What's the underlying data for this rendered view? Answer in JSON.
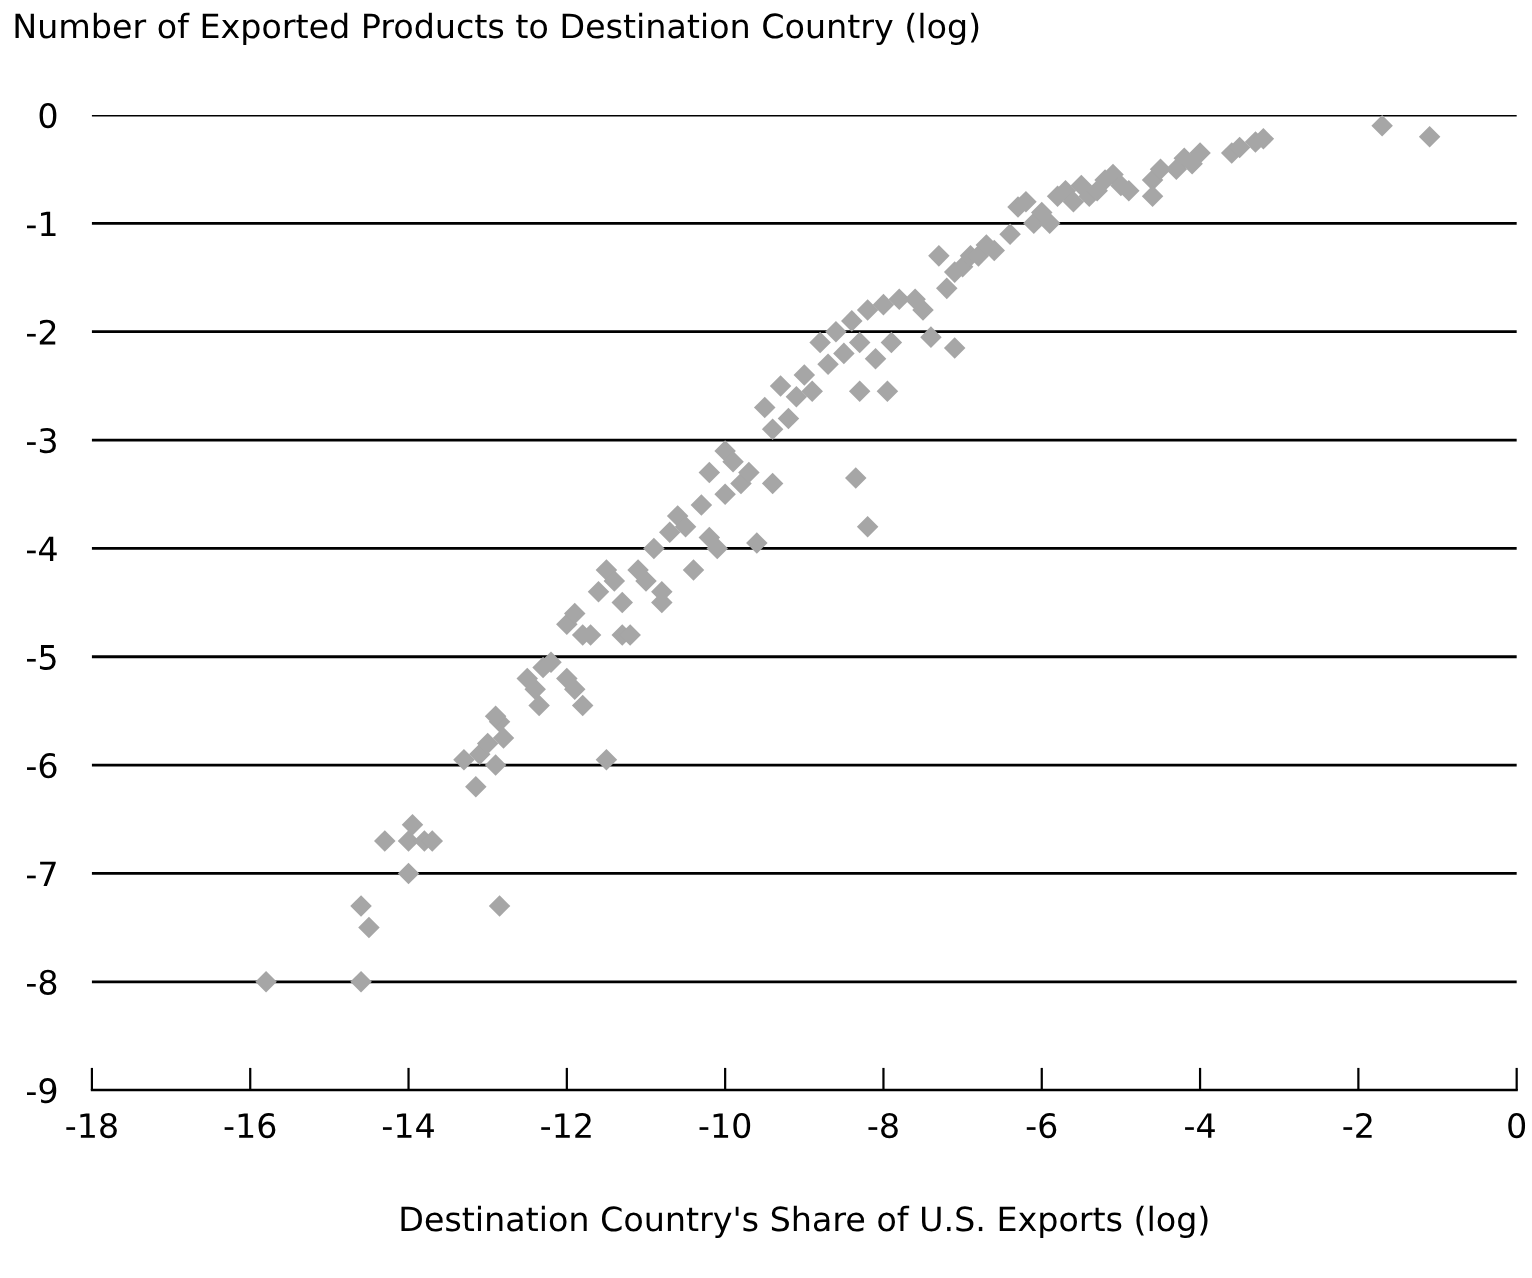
{
  "chart_data": {
    "type": "scatter",
    "ylabel": "Number of Exported Products to Destination Country (log)",
    "xlabel": "Destination Country's Share of U.S. Exports (log)",
    "marker": "diamond",
    "grid": "y",
    "xlim": [
      -18,
      0
    ],
    "xticks": [
      -18,
      -16,
      -14,
      -12,
      -10,
      -8,
      -6,
      -4,
      -2,
      0
    ],
    "ylim": [
      -9,
      0
    ],
    "yticks": [
      -9,
      -8,
      -7,
      -6,
      -5,
      -4,
      -3,
      -2,
      -1,
      0
    ],
    "series": [
      {
        "color": "#a6a6a6",
        "x": [
          -15.8,
          -14.6,
          -14.6,
          -14.5,
          -14.3,
          -14.0,
          -14.0,
          -13.95,
          -13.8,
          -13.7,
          -12.85,
          -13.3,
          -13.15,
          -13.1,
          -13.0,
          -12.9,
          -12.85,
          -12.8,
          -12.9,
          -12.5,
          -12.4,
          -12.35,
          -12.3,
          -12.2,
          -12.0,
          -11.9,
          -11.8,
          -12.0,
          -11.9,
          -11.8,
          -11.7,
          -11.5,
          -11.6,
          -11.5,
          -11.4,
          -11.3,
          -11.3,
          -11.2,
          -11.1,
          -11.0,
          -10.9,
          -10.8,
          -10.8,
          -10.7,
          -10.6,
          -10.5,
          -10.4,
          -10.3,
          -10.2,
          -10.2,
          -10.1,
          -10.0,
          -10.0,
          -9.9,
          -9.8,
          -9.7,
          -9.6,
          -9.5,
          -9.4,
          -9.4,
          -9.3,
          -9.2,
          -9.1,
          -9.0,
          -8.9,
          -8.8,
          -8.7,
          -8.6,
          -8.5,
          -8.4,
          -8.35,
          -8.3,
          -8.3,
          -8.2,
          -8.2,
          -8.1,
          -8.0,
          -7.95,
          -7.9,
          -7.8,
          -7.6,
          -7.5,
          -7.4,
          -7.3,
          -7.2,
          -7.1,
          -7.1,
          -7.0,
          -6.9,
          -6.8,
          -6.7,
          -6.6,
          -6.4,
          -6.3,
          -6.2,
          -6.1,
          -6.0,
          -5.9,
          -5.8,
          -5.7,
          -5.6,
          -5.5,
          -5.4,
          -5.3,
          -5.2,
          -5.1,
          -5.0,
          -4.9,
          -4.6,
          -4.6,
          -4.5,
          -4.3,
          -4.2,
          -4.1,
          -4.0,
          -3.6,
          -3.5,
          -3.3,
          -3.2,
          -1.7,
          -1.1
        ],
        "values": [
          -8.0,
          -8.0,
          -7.3,
          -7.5,
          -6.7,
          -7.0,
          -6.7,
          -6.55,
          -6.7,
          -6.7,
          -7.3,
          -5.95,
          -6.2,
          -5.9,
          -5.8,
          -6.0,
          -5.6,
          -5.75,
          -5.55,
          -5.2,
          -5.3,
          -5.45,
          -5.1,
          -5.05,
          -5.2,
          -5.3,
          -5.45,
          -4.7,
          -4.6,
          -4.8,
          -4.8,
          -5.95,
          -4.4,
          -4.2,
          -4.3,
          -4.5,
          -4.8,
          -4.8,
          -4.2,
          -4.3,
          -4.0,
          -4.5,
          -4.4,
          -3.85,
          -3.7,
          -3.8,
          -4.2,
          -3.6,
          -3.3,
          -3.9,
          -4.0,
          -3.1,
          -3.5,
          -3.2,
          -3.4,
          -3.3,
          -3.95,
          -2.7,
          -2.9,
          -3.4,
          -2.5,
          -2.8,
          -2.6,
          -2.4,
          -2.55,
          -2.1,
          -2.3,
          -2.0,
          -2.2,
          -1.9,
          -3.35,
          -2.1,
          -2.55,
          -3.8,
          -1.8,
          -2.25,
          -1.75,
          -2.55,
          -2.1,
          -1.7,
          -1.7,
          -1.8,
          -2.05,
          -1.3,
          -1.6,
          -1.45,
          -2.15,
          -1.4,
          -1.3,
          -1.3,
          -1.2,
          -1.25,
          -1.1,
          -0.85,
          -0.8,
          -1.0,
          -0.9,
          -1.0,
          -0.75,
          -0.7,
          -0.8,
          -0.65,
          -0.75,
          -0.7,
          -0.6,
          -0.55,
          -0.65,
          -0.7,
          -0.6,
          -0.75,
          -0.5,
          -0.5,
          -0.4,
          -0.45,
          -0.35,
          -0.35,
          -0.3,
          -0.25,
          -0.22,
          -0.1,
          -0.2
        ]
      }
    ]
  }
}
